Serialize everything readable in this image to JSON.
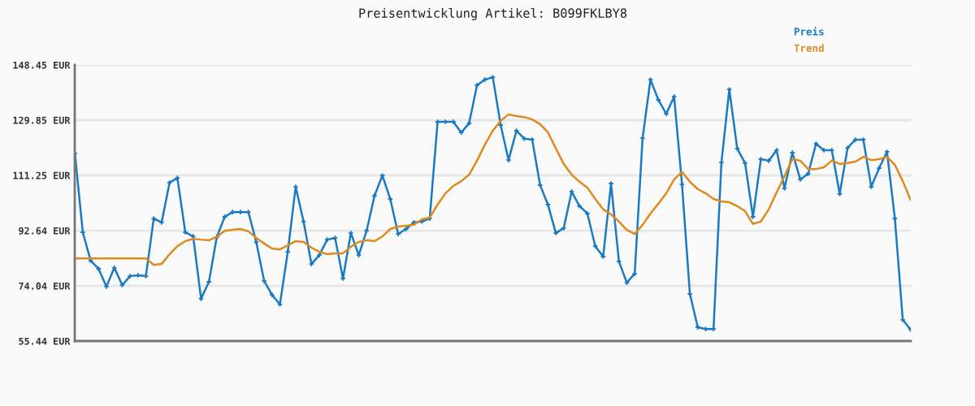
{
  "chart_data": {
    "type": "line",
    "title": "Preisentwicklung Artikel: B099FKLBY8",
    "categories": [
      null,
      null,
      null,
      null,
      null,
      null,
      null,
      null,
      null,
      null,
      null,
      null,
      null,
      null,
      null,
      null,
      null,
      null,
      null,
      null,
      null,
      null,
      null,
      null,
      null,
      null,
      null,
      null,
      null,
      null,
      null,
      null,
      null,
      null,
      null,
      null,
      null,
      null,
      null,
      null,
      null,
      null,
      null,
      null,
      null,
      null,
      null,
      null,
      null,
      null,
      null,
      null,
      null,
      null,
      null,
      null,
      null,
      null,
      null,
      null,
      null,
      null,
      null,
      null,
      null,
      null,
      null,
      null,
      null,
      null,
      null,
      null,
      null,
      null,
      null,
      null,
      null,
      null,
      null,
      null,
      null,
      null,
      null,
      null,
      null,
      null,
      null,
      null,
      null,
      null,
      null,
      null,
      null,
      null,
      null,
      null,
      null,
      null,
      null,
      null,
      null,
      null,
      null,
      null,
      null,
      null,
      null
    ],
    "series": [
      {
        "name": "Preis",
        "color": "#1a7ac4",
        "marker": "cross",
        "values": [
          118.6,
          92.1,
          82.5,
          79.8,
          73.8,
          80.1,
          74.3,
          77.3,
          77.6,
          77.3,
          96.7,
          95.4,
          108.8,
          110.4,
          92.1,
          90.7,
          69.7,
          75.4,
          90.5,
          97.3,
          98.9,
          98.9,
          98.9,
          88.8,
          75.7,
          71.0,
          67.8,
          85.5,
          107.4,
          95.7,
          81.4,
          84.4,
          89.6,
          90.2,
          76.5,
          91.8,
          84.4,
          92.6,
          104.4,
          111.2,
          103.3,
          91.5,
          93.2,
          95.4,
          95.7,
          96.7,
          129.3,
          129.3,
          129.3,
          125.7,
          128.8,
          141.6,
          143.5,
          144.3,
          128.2,
          116.4,
          126.3,
          123.6,
          123.3,
          108.0,
          101.4,
          91.8,
          93.5,
          105.8,
          100.9,
          98.4,
          87.4,
          83.9,
          108.5,
          82.3,
          75.1,
          78.1,
          123.8,
          143.5,
          136.7,
          132.0,
          137.8,
          108.2,
          71.3,
          60.1,
          59.5,
          59.5,
          115.6,
          140.2,
          120.3,
          115.4,
          97.3,
          116.7,
          116.2,
          119.7,
          106.9,
          118.9,
          109.9,
          111.8,
          121.9,
          119.7,
          119.7,
          105.0,
          120.5,
          123.3,
          123.3,
          107.4,
          113.7,
          119.2,
          96.7,
          62.6,
          59.3
        ]
      },
      {
        "name": "Trend",
        "color": "#e08a1e",
        "marker": "none",
        "values": [
          83.3,
          83.3,
          83.3,
          83.3,
          83.3,
          83.3,
          83.3,
          83.3,
          83.3,
          83.3,
          81.1,
          81.4,
          84.7,
          87.4,
          89.1,
          89.9,
          89.6,
          89.4,
          90.5,
          92.6,
          92.9,
          93.2,
          92.4,
          90.2,
          88.3,
          86.6,
          86.3,
          87.7,
          89.1,
          88.8,
          86.9,
          85.5,
          84.7,
          85.0,
          85.0,
          87.2,
          88.8,
          89.4,
          89.1,
          90.7,
          93.2,
          94.0,
          94.3,
          94.6,
          96.5,
          97.0,
          101.4,
          105.2,
          107.7,
          109.3,
          111.5,
          116.2,
          121.6,
          126.3,
          129.6,
          131.8,
          131.2,
          130.9,
          130.1,
          128.5,
          125.7,
          120.3,
          115.1,
          111.5,
          109.1,
          107.1,
          103.3,
          99.8,
          98.1,
          95.7,
          92.9,
          91.5,
          94.6,
          98.4,
          101.7,
          105.2,
          109.9,
          112.4,
          109.1,
          106.6,
          105.2,
          103.3,
          102.5,
          102.2,
          100.9,
          99.2,
          94.9,
          95.7,
          99.8,
          105.5,
          111.0,
          116.7,
          116.2,
          113.4,
          113.4,
          114.0,
          116.2,
          115.1,
          115.4,
          115.9,
          117.5,
          116.4,
          116.7,
          117.5,
          114.8,
          109.3,
          103.0
        ]
      }
    ],
    "ylim": [
      55.44,
      148.45
    ],
    "yticks": [
      {
        "value": 55.44,
        "label": "55.44 EUR"
      },
      {
        "value": 74.04,
        "label": "74.04 EUR"
      },
      {
        "value": 92.64,
        "label": "92.64 EUR"
      },
      {
        "value": 111.25,
        "label": "111.25 EUR"
      },
      {
        "value": 129.85,
        "label": "129.85 EUR"
      },
      {
        "value": 148.45,
        "label": "148.45 EUR"
      }
    ],
    "grid": "y",
    "legend": "top right",
    "line_style": "solid"
  }
}
